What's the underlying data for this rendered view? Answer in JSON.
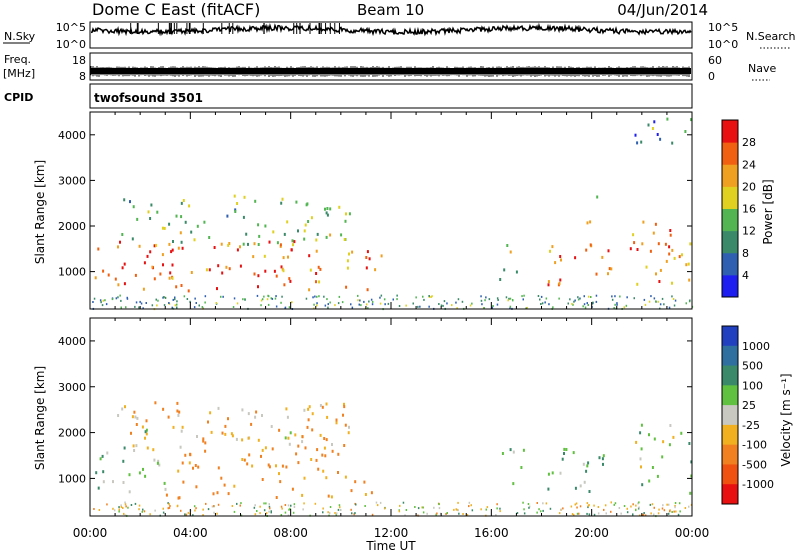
{
  "header": {
    "station": "Dome C East (fitACF)",
    "beam": "Beam 10",
    "date": "04/Jun/2014"
  },
  "strips": {
    "nsky_label": "N.Sky",
    "nsky_ticks": [
      "10^5",
      "10^0"
    ],
    "nsearch_label": "N.Search",
    "freq_label_top": "Freq.",
    "freq_label_units": "[MHz]",
    "freq_ticks": [
      "18",
      "8"
    ],
    "nave_label": "Nave",
    "nave_ticks": [
      "60",
      "0"
    ],
    "cpid_label": "CPID",
    "cpid_value": "twofsound 3501"
  },
  "colors": {
    "power_scale": [
      "#1e1ef0",
      "#2e5fb0",
      "#3a8a6a",
      "#52b552",
      "#e0d020",
      "#f0a020",
      "#f06010",
      "#e81010"
    ],
    "velocity_scale": [
      "#2040c0",
      "#2f6fa0",
      "#3a8a6a",
      "#60c040",
      "#c8c8c0",
      "#f0b020",
      "#f08020",
      "#f05010",
      "#e81010"
    ]
  },
  "chart_data": [
    {
      "type": "heatmap",
      "name": "power",
      "ylabel": "Slant Range [km]",
      "xlabel": "",
      "ylim": [
        180,
        4500
      ],
      "yticks": [
        1000,
        2000,
        3000,
        4000
      ],
      "xlim": [
        0,
        24
      ],
      "xticks": [
        "00:00",
        "04:00",
        "08:00",
        "12:00",
        "16:00",
        "20:00",
        "00:00"
      ],
      "colorbar_label": "Power [dB]",
      "colorbar_ticks": [
        4,
        8,
        12,
        16,
        20,
        24,
        28
      ],
      "approx_patches": [
        {
          "t0": 0.0,
          "t1": 11.3,
          "r0": 600,
          "r1": 1700,
          "level": 26
        },
        {
          "t0": 1.0,
          "t1": 10.5,
          "r0": 1600,
          "r1": 2700,
          "level": 14
        },
        {
          "t0": 11.3,
          "t1": 11.8,
          "r0": 800,
          "r1": 1600,
          "level": 18
        },
        {
          "t0": 16.3,
          "t1": 17.3,
          "r0": 800,
          "r1": 1700,
          "level": 16
        },
        {
          "t0": 18.2,
          "t1": 20.8,
          "r0": 700,
          "r1": 1700,
          "level": 25
        },
        {
          "t0": 19.5,
          "t1": 20.2,
          "r0": 1900,
          "r1": 2700,
          "level": 14
        },
        {
          "t0": 21.5,
          "t1": 24.0,
          "r0": 700,
          "r1": 2200,
          "level": 23
        },
        {
          "t0": 21.5,
          "t1": 24.0,
          "r0": 3800,
          "r1": 4400,
          "level": 10
        }
      ]
    },
    {
      "type": "heatmap",
      "name": "velocity",
      "ylabel": "Slant Range [km]",
      "xlabel": "Time UT",
      "ylim": [
        180,
        4500
      ],
      "yticks": [
        1000,
        2000,
        3000,
        4000
      ],
      "xlim": [
        0,
        24
      ],
      "xticks": [
        "00:00",
        "04:00",
        "08:00",
        "12:00",
        "16:00",
        "20:00",
        "00:00"
      ],
      "colorbar_label": "Velocity [m s⁻¹]",
      "colorbar_ticks": [
        1000,
        500,
        100,
        25,
        -25,
        -100,
        -500,
        -1000
      ],
      "approx_patches": [
        {
          "t0": 0.0,
          "t1": 3.0,
          "r0": 700,
          "r1": 1700,
          "level": 80
        },
        {
          "t0": 3.0,
          "t1": 11.3,
          "r0": 600,
          "r1": 1700,
          "level": -150
        },
        {
          "t0": 1.0,
          "t1": 10.5,
          "r0": 1600,
          "r1": 2700,
          "level": -100
        },
        {
          "t0": 2.0,
          "t1": 9.0,
          "r0": 1800,
          "r1": 2200,
          "level": 0
        },
        {
          "t0": 16.3,
          "t1": 17.3,
          "r0": 800,
          "r1": 1700,
          "level": 60
        },
        {
          "t0": 18.2,
          "t1": 20.8,
          "r0": 700,
          "r1": 1700,
          "level": 80
        },
        {
          "t0": 21.5,
          "t1": 24.0,
          "r0": 700,
          "r1": 2200,
          "level": 60
        }
      ]
    }
  ]
}
